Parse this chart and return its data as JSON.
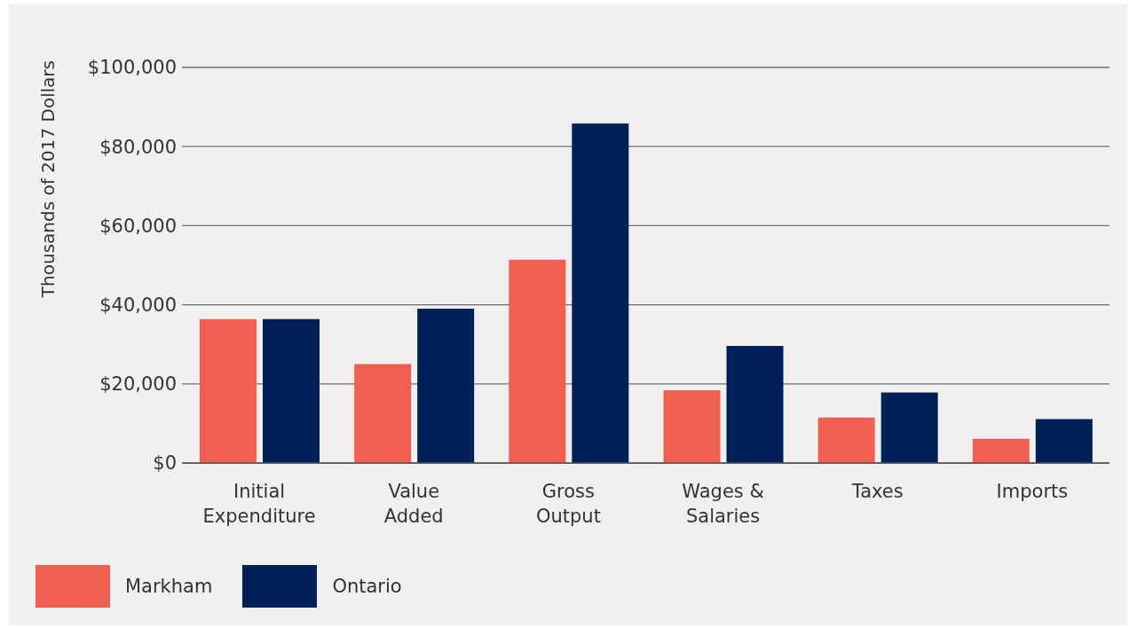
{
  "chart_data": {
    "type": "bar",
    "ylabel": "Thousands of 2017 Dollars",
    "categories": [
      "Initial Expenditure",
      "Value Added",
      "Gross Output",
      "Wages & Salaries",
      "Taxes",
      "Imports"
    ],
    "series": [
      {
        "name": "Markham",
        "color": "#f05f52",
        "values": [
          36400,
          25000,
          51400,
          18400,
          11500,
          6100
        ]
      },
      {
        "name": "Ontario",
        "color": "#002157",
        "values": [
          36400,
          39000,
          85800,
          29600,
          17800,
          11100
        ]
      }
    ],
    "ylim": [
      0,
      100000
    ],
    "yticks": [
      {
        "value": 0,
        "label": "$0"
      },
      {
        "value": 20000,
        "label": "$20,000"
      },
      {
        "value": 40000,
        "label": "$40,000"
      },
      {
        "value": 60000,
        "label": "$60,000"
      },
      {
        "value": 80000,
        "label": "$80,000"
      },
      {
        "value": 100000,
        "label": "$100,000"
      }
    ],
    "grid": "y",
    "legend": "bottom left"
  }
}
